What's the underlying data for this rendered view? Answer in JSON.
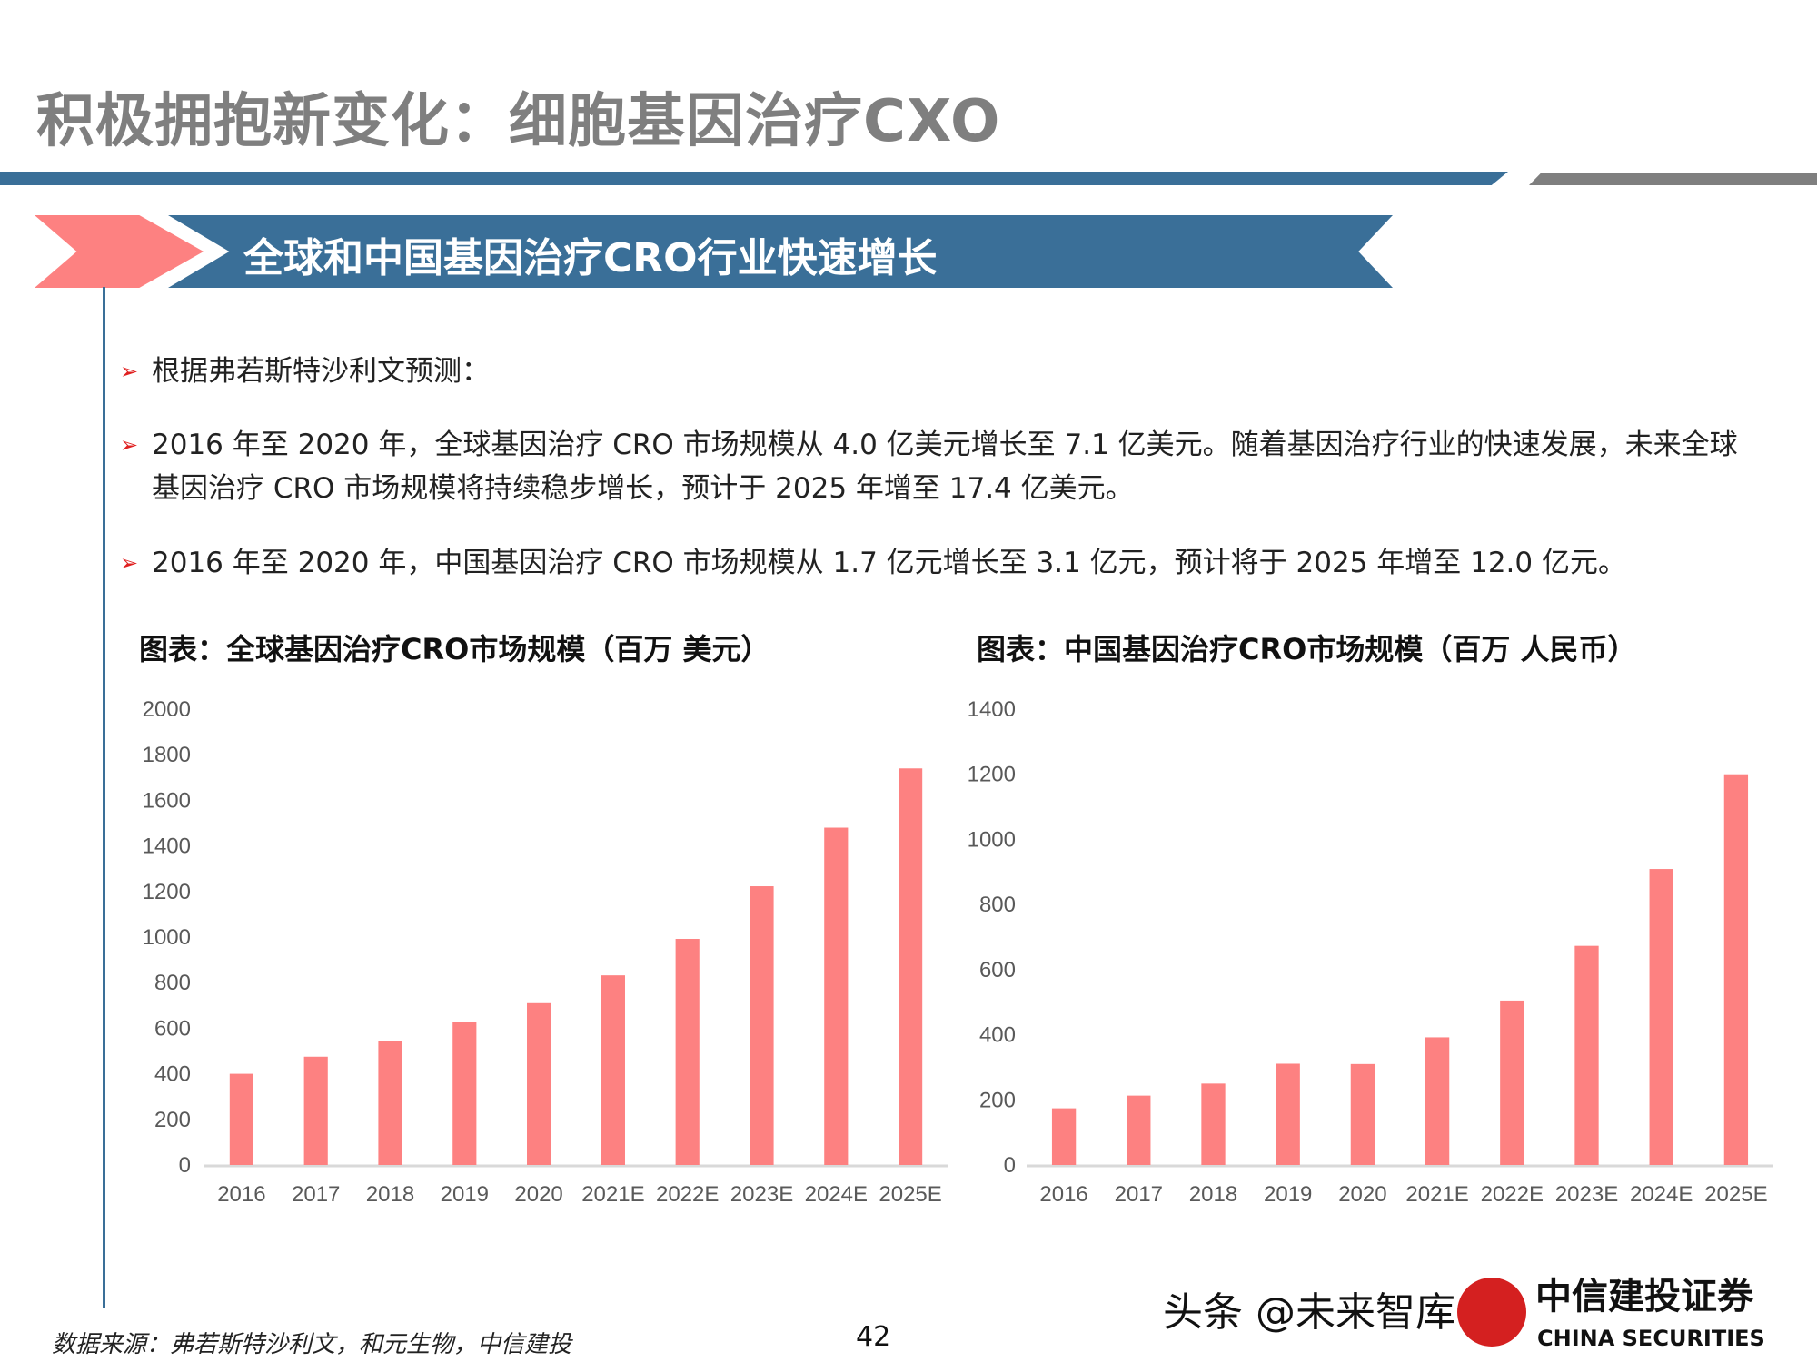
{
  "header": {
    "title": "积极拥抱新变化：细胞基因治疗CXO"
  },
  "banner": {
    "text": "全球和中国基因治疗CRO行业快速增长"
  },
  "bullets": [
    "根据弗若斯特沙利文预测：",
    "2016 年至 2020 年，全球基因治疗 CRO 市场规模从 4.0 亿美元增长至 7.1 亿美元。随着基因治疗行业的快速发展，未来全球基因治疗 CRO 市场规模将持续稳步增长，预计于 2025 年增至 17.4 亿美元。",
    "2016 年至 2020 年，中国基因治疗 CRO 市场规模从 1.7 亿元增长至 3.1 亿元，预计将于 2025 年增至 12.0 亿元。"
  ],
  "colors": {
    "accent_blue": "#3a6f98",
    "bar": "#fd8181",
    "gray": "#7f7f7f"
  },
  "chart_data": [
    {
      "type": "bar",
      "title": "图表：全球基因治疗CRO市场规模（百万 美元）",
      "categories": [
        "2016",
        "2017",
        "2018",
        "2019",
        "2020",
        "2021E",
        "2022E",
        "2023E",
        "2024E",
        "2025E"
      ],
      "values": [
        400,
        475,
        544,
        629,
        710,
        832,
        992,
        1223,
        1480,
        1740
      ],
      "ylim": [
        0,
        2000
      ],
      "yticks": [
        "0",
        "200",
        "400",
        "600",
        "800",
        "1000",
        "1200",
        "1400",
        "1600",
        "1800",
        "2000"
      ],
      "grid": false
    },
    {
      "type": "bar",
      "title": "图表：中国基因治疗CRO市场规模（百万 人民币）",
      "categories": [
        "2016",
        "2017",
        "2018",
        "2019",
        "2020",
        "2021E",
        "2022E",
        "2023E",
        "2024E",
        "2025E"
      ],
      "values": [
        174,
        213,
        250,
        311,
        310,
        392,
        505,
        673,
        909,
        1200
      ],
      "ylim": [
        0,
        1400
      ],
      "yticks": [
        "0",
        "200",
        "400",
        "600",
        "800",
        "1000",
        "1200",
        "1400"
      ],
      "grid": false
    }
  ],
  "footer": {
    "source": "数据来源：弗若斯特沙利文，和元生物，中信建投",
    "page": "42",
    "logo_text": "中信建投证券",
    "logo_en": "CHINA SECURITIES",
    "watermark": "头条 @未来智库"
  }
}
